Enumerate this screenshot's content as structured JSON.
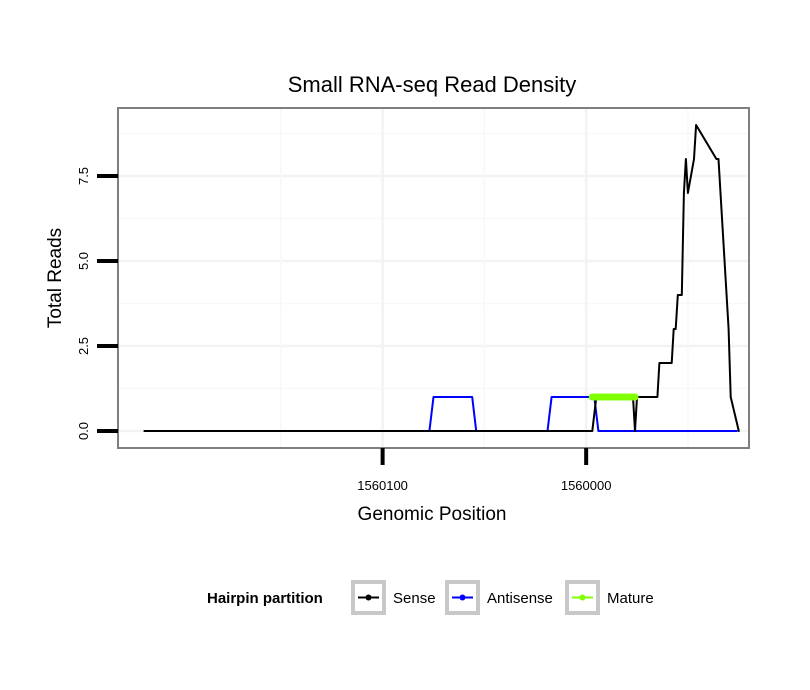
{
  "chart_data": {
    "type": "line",
    "title": "Small RNA-seq Read Density",
    "xlabel": "Genomic Position",
    "ylabel": "Total Reads",
    "xlim": [
      1560230,
      1559920
    ],
    "ylim": [
      -0.5,
      9.5
    ],
    "x_ticks": [
      {
        "value": 1560100,
        "label": "1560100"
      },
      {
        "value": 1560000,
        "label": "1560000"
      }
    ],
    "y_ticks": [
      {
        "value": 0,
        "label": "0.0"
      },
      {
        "value": 2.5,
        "label": "2.5"
      },
      {
        "value": 5,
        "label": "5.0"
      },
      {
        "value": 7.5,
        "label": "7.5"
      }
    ],
    "legend": {
      "title": "Hairpin partition",
      "placement": "bottom",
      "entries": [
        {
          "label": "Sense",
          "color": "#000000"
        },
        {
          "label": "Antisense",
          "color": "#0000ff"
        },
        {
          "label": "Mature",
          "color": "#7fff00"
        }
      ]
    },
    "series": [
      {
        "name": "Sense",
        "color": "#000000",
        "x": [
          1560217,
          1560000,
          1559997,
          1559995,
          1559977,
          1559976,
          1559975,
          1559965,
          1559964,
          1559958,
          1559957,
          1559956,
          1559955,
          1559953,
          1559952,
          1559951,
          1559950,
          1559947,
          1559946,
          1559936,
          1559935,
          1559934,
          1559930,
          1559929,
          1559925
        ],
        "y": [
          0,
          0,
          0,
          1,
          1,
          0,
          1,
          1,
          2,
          2,
          3,
          3,
          4,
          4,
          7,
          8,
          7,
          8,
          9,
          8,
          8,
          7,
          3,
          1,
          0
        ]
      },
      {
        "name": "Antisense",
        "color": "#0000ff",
        "x": [
          1560217,
          1560077,
          1560075,
          1560056,
          1560054,
          1560019,
          1560017,
          1559996,
          1559994,
          1559926
        ],
        "y": [
          0,
          0,
          1,
          1,
          0,
          0,
          1,
          1,
          0,
          0
        ]
      },
      {
        "name": "Mature",
        "color": "#7fff00",
        "x": [
          1559997,
          1559976
        ],
        "y": [
          1,
          1
        ]
      }
    ]
  }
}
